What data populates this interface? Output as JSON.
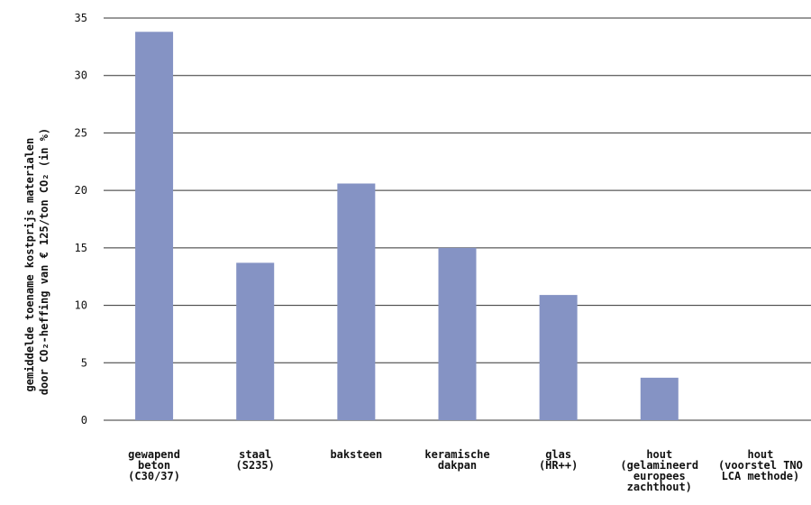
{
  "chart_data": {
    "type": "bar",
    "ylabel_lines": [
      "gemiddelde toename kostprijs materialen",
      "door CO₂-heffing van € 125/ton CO₂ (in %)"
    ],
    "ylim": [
      0,
      35
    ],
    "yticks": [
      0,
      5,
      10,
      15,
      20,
      25,
      30,
      35
    ],
    "grid": true,
    "bar_color": "#8593c4",
    "categories": [
      [
        "gewapend",
        "beton",
        "(C30/37)"
      ],
      [
        "staal",
        "(S235)"
      ],
      [
        "baksteen"
      ],
      [
        "keramische",
        "dakpan"
      ],
      [
        "glas",
        "(HR++)"
      ],
      [
        "hout",
        "(gelamineerd",
        "europees",
        "zachthout)"
      ],
      [
        "hout",
        "(voorstel TNO",
        "LCA methode)"
      ]
    ],
    "values": [
      33.8,
      13.7,
      20.6,
      15.0,
      10.9,
      3.7,
      0
    ]
  }
}
